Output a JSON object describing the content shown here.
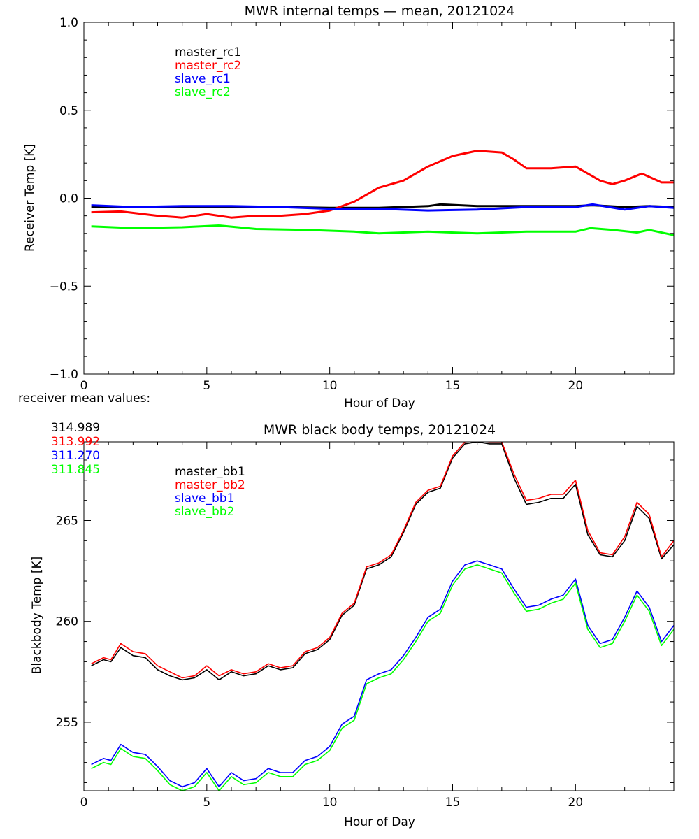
{
  "colors": {
    "black": "#000000",
    "red": "#ff0000",
    "blue": "#0000ff",
    "green": "#00ff00"
  },
  "receiver_means": {
    "label": "receiver mean values:",
    "values": [
      {
        "text": "314.989",
        "color": "#000000"
      },
      {
        "text": "313.992",
        "color": "#ff0000"
      },
      {
        "text": "311.270",
        "color": "#0000ff"
      },
      {
        "text": "311.845",
        "color": "#00ff00"
      }
    ]
  },
  "chart_data": [
    {
      "type": "line",
      "title": "MWR internal temps — mean, 20121024",
      "xlabel": "Hour of Day",
      "ylabel": "Receiver Temp [K]",
      "xlim": [
        0,
        24
      ],
      "ylim": [
        -1.0,
        1.0
      ],
      "xticks": [
        0,
        5,
        10,
        15,
        20
      ],
      "yticks": [
        -1.0,
        -0.5,
        0.0,
        0.5,
        1.0
      ],
      "ytick_labels": [
        "−1.0",
        "−0.5",
        "0.0",
        "0.5",
        "1.0"
      ],
      "legend_position": "top-left",
      "series": [
        {
          "name": "master_rc1",
          "color": "#000000",
          "x": [
            0.3,
            2,
            4,
            6,
            8,
            10,
            12,
            14,
            14.5,
            16,
            18,
            20,
            20.7,
            22,
            23,
            24
          ],
          "y": [
            -0.05,
            -0.05,
            -0.05,
            -0.05,
            -0.05,
            -0.055,
            -0.055,
            -0.045,
            -0.035,
            -0.045,
            -0.045,
            -0.045,
            -0.04,
            -0.05,
            -0.045,
            -0.05
          ]
        },
        {
          "name": "master_rc2",
          "color": "#ff0000",
          "x": [
            0.3,
            1.5,
            3,
            4,
            5,
            6,
            7,
            8,
            9,
            10,
            11,
            12,
            13,
            14,
            15,
            16,
            17,
            17.5,
            18,
            19,
            20,
            21,
            21.5,
            22,
            22.7,
            23.5,
            24
          ],
          "y": [
            -0.08,
            -0.075,
            -0.1,
            -0.11,
            -0.09,
            -0.11,
            -0.1,
            -0.1,
            -0.09,
            -0.07,
            -0.02,
            0.06,
            0.1,
            0.18,
            0.24,
            0.27,
            0.26,
            0.22,
            0.17,
            0.17,
            0.18,
            0.1,
            0.08,
            0.1,
            0.14,
            0.09,
            0.09
          ]
        },
        {
          "name": "slave_rc1",
          "color": "#0000ff",
          "x": [
            0.3,
            2,
            4,
            6,
            8,
            10,
            12,
            14,
            16,
            18,
            20,
            20.7,
            22,
            23,
            24
          ],
          "y": [
            -0.04,
            -0.05,
            -0.045,
            -0.045,
            -0.05,
            -0.06,
            -0.06,
            -0.07,
            -0.065,
            -0.05,
            -0.05,
            -0.035,
            -0.065,
            -0.045,
            -0.055
          ]
        },
        {
          "name": "slave_rc2",
          "color": "#00ff00",
          "x": [
            0.3,
            2,
            4,
            5.5,
            7,
            9,
            11,
            12,
            14,
            16,
            18,
            20,
            20.6,
            21.5,
            22.5,
            23,
            24
          ],
          "y": [
            -0.16,
            -0.17,
            -0.165,
            -0.155,
            -0.175,
            -0.18,
            -0.19,
            -0.2,
            -0.19,
            -0.2,
            -0.19,
            -0.19,
            -0.17,
            -0.18,
            -0.195,
            -0.18,
            -0.21
          ]
        }
      ]
    },
    {
      "type": "line",
      "title": "MWR black body temps, 20121024",
      "xlabel": "Hour of Day",
      "ylabel": "Blackbody Temp [K]",
      "xlim": [
        0,
        24
      ],
      "ylim": [
        251.6,
        268.9
      ],
      "xticks": [
        0,
        5,
        10,
        15,
        20
      ],
      "yticks": [
        255,
        260,
        265
      ],
      "legend_position": "top-left",
      "series": [
        {
          "name": "master_bb1",
          "color": "#000000",
          "x": [
            0.3,
            0.8,
            1.1,
            1.5,
            2,
            2.5,
            3,
            3.5,
            4,
            4.5,
            5,
            5.5,
            6,
            6.5,
            7,
            7.5,
            8,
            8.5,
            9,
            9.5,
            10,
            10.5,
            11,
            11.5,
            12,
            12.5,
            13,
            13.5,
            14,
            14.5,
            15,
            15.5,
            16,
            16.5,
            17,
            17.5,
            18,
            18.5,
            19,
            19.5,
            20,
            20.5,
            21,
            21.5,
            22,
            22.5,
            23,
            23.5,
            24
          ],
          "y": [
            257.8,
            258.1,
            258.0,
            258.7,
            258.3,
            258.2,
            257.6,
            257.3,
            257.1,
            257.2,
            257.6,
            257.1,
            257.5,
            257.3,
            257.4,
            257.8,
            257.6,
            257.7,
            258.4,
            258.6,
            259.1,
            260.3,
            260.8,
            262.6,
            262.8,
            263.2,
            264.4,
            265.8,
            266.4,
            266.6,
            268.1,
            268.8,
            268.9,
            268.8,
            268.8,
            267.1,
            265.8,
            265.9,
            266.1,
            266.1,
            266.8,
            264.3,
            263.3,
            263.2,
            264.0,
            265.7,
            265.1,
            263.1,
            263.8
          ]
        },
        {
          "name": "master_bb2",
          "color": "#ff0000",
          "x": [
            0.3,
            0.8,
            1.1,
            1.5,
            2,
            2.5,
            3,
            3.5,
            4,
            4.5,
            5,
            5.5,
            6,
            6.5,
            7,
            7.5,
            8,
            8.5,
            9,
            9.5,
            10,
            10.5,
            11,
            11.5,
            12,
            12.5,
            13,
            13.5,
            14,
            14.5,
            15,
            15.5,
            16,
            16.5,
            17,
            17.5,
            18,
            18.5,
            19,
            19.5,
            20,
            20.5,
            21,
            21.5,
            22,
            22.5,
            23,
            23.5,
            24
          ],
          "y": [
            257.9,
            258.2,
            258.1,
            258.9,
            258.5,
            258.4,
            257.8,
            257.5,
            257.2,
            257.3,
            257.8,
            257.3,
            257.6,
            257.4,
            257.5,
            257.9,
            257.7,
            257.8,
            258.5,
            258.7,
            259.2,
            260.4,
            260.9,
            262.7,
            262.9,
            263.3,
            264.5,
            265.9,
            266.5,
            266.7,
            268.2,
            268.9,
            268.95,
            268.9,
            268.9,
            267.3,
            266.0,
            266.1,
            266.3,
            266.3,
            267.0,
            264.5,
            263.4,
            263.3,
            264.2,
            265.9,
            265.3,
            263.2,
            264.0
          ]
        },
        {
          "name": "slave_bb1",
          "color": "#0000ff",
          "x": [
            0.3,
            0.8,
            1.1,
            1.5,
            2,
            2.5,
            3,
            3.5,
            4,
            4.5,
            5,
            5.5,
            6,
            6.5,
            7,
            7.5,
            8,
            8.5,
            9,
            9.5,
            10,
            10.5,
            11,
            11.5,
            12,
            12.5,
            13,
            13.5,
            14,
            14.5,
            15,
            15.5,
            16,
            16.5,
            17,
            17.5,
            18,
            18.5,
            19,
            19.5,
            20,
            20.5,
            21,
            21.5,
            22,
            22.5,
            23,
            23.5,
            24
          ],
          "y": [
            252.9,
            253.2,
            253.1,
            253.9,
            253.5,
            253.4,
            252.8,
            252.1,
            251.8,
            252.0,
            252.7,
            251.8,
            252.5,
            252.1,
            252.2,
            252.7,
            252.5,
            252.5,
            253.1,
            253.3,
            253.8,
            254.9,
            255.3,
            257.1,
            257.4,
            257.6,
            258.3,
            259.2,
            260.2,
            260.6,
            262.0,
            262.8,
            263.0,
            262.8,
            262.6,
            261.6,
            260.7,
            260.8,
            261.1,
            261.3,
            262.1,
            259.8,
            258.9,
            259.1,
            260.2,
            261.5,
            260.7,
            259.0,
            259.8
          ]
        },
        {
          "name": "slave_bb2",
          "color": "#00ff00",
          "x": [
            0.3,
            0.8,
            1.1,
            1.5,
            2,
            2.5,
            3,
            3.5,
            4,
            4.5,
            5,
            5.5,
            6,
            6.5,
            7,
            7.5,
            8,
            8.5,
            9,
            9.5,
            10,
            10.5,
            11,
            11.5,
            12,
            12.5,
            13,
            13.5,
            14,
            14.5,
            15,
            15.5,
            16,
            16.5,
            17,
            17.5,
            18,
            18.5,
            19,
            19.5,
            20,
            20.5,
            21,
            21.5,
            22,
            22.5,
            23,
            23.5,
            24
          ],
          "y": [
            252.7,
            253.0,
            252.9,
            253.7,
            253.3,
            253.2,
            252.6,
            251.9,
            251.6,
            251.8,
            252.5,
            251.6,
            252.3,
            251.9,
            252.0,
            252.5,
            252.3,
            252.3,
            252.9,
            253.1,
            253.6,
            254.7,
            255.1,
            256.9,
            257.2,
            257.4,
            258.1,
            259.0,
            260.0,
            260.4,
            261.8,
            262.6,
            262.8,
            262.6,
            262.4,
            261.4,
            260.5,
            260.6,
            260.9,
            261.1,
            261.9,
            259.6,
            258.7,
            258.9,
            260.0,
            261.3,
            260.5,
            258.8,
            259.6
          ]
        }
      ]
    }
  ]
}
